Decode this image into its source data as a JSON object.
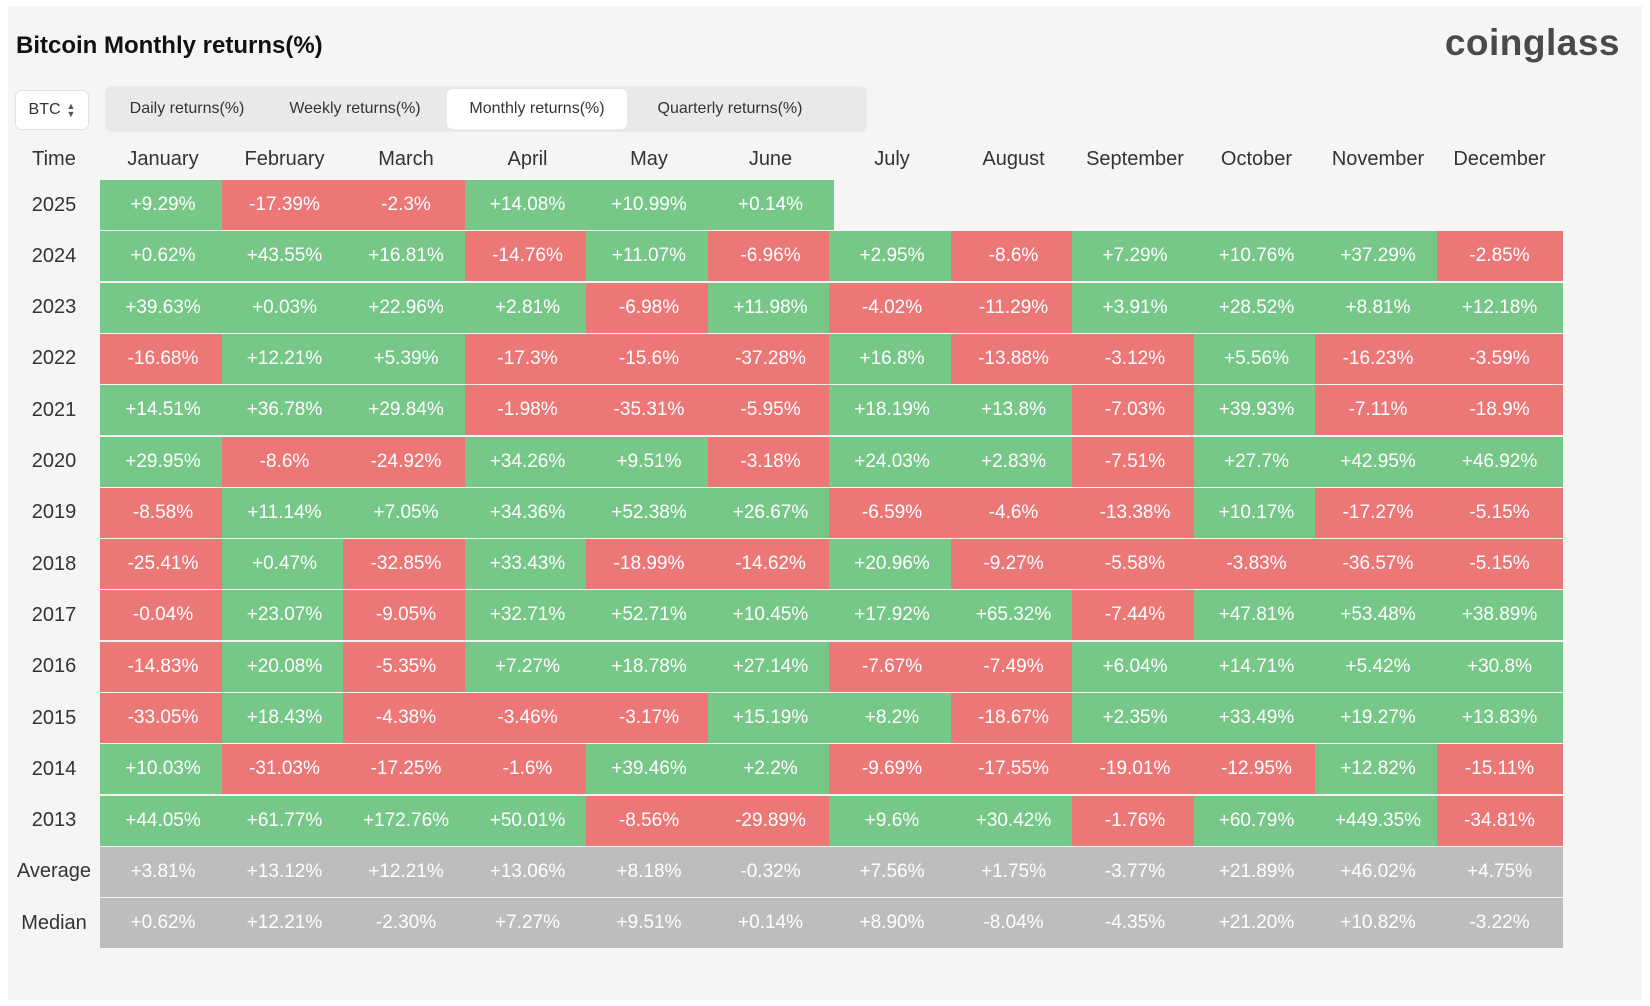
{
  "header": {
    "title": "Bitcoin Monthly returns(%)",
    "logo_text": "coinglass"
  },
  "controls": {
    "asset_selector": {
      "value": "BTC",
      "icon": "updown-chevron-icon"
    },
    "tabs": [
      {
        "label": "Daily returns(%)",
        "active": false
      },
      {
        "label": "Weekly returns(%)",
        "active": false
      },
      {
        "label": "Monthly returns(%)",
        "active": true
      },
      {
        "label": "Quarterly returns(%)",
        "active": false
      }
    ]
  },
  "colors": {
    "positive": "#77c888",
    "negative": "#eb7777",
    "summary": "#bdbdbd"
  },
  "chart_data": {
    "type": "heatmap",
    "title": "Bitcoin Monthly returns(%)",
    "row_header": "Time",
    "columns": [
      "January",
      "February",
      "March",
      "April",
      "May",
      "June",
      "July",
      "August",
      "September",
      "October",
      "November",
      "December"
    ],
    "rows": [
      {
        "label": "2025",
        "values": [
          "+9.29%",
          "-17.39%",
          "-2.3%",
          "+14.08%",
          "+10.99%",
          "+0.14%",
          null,
          null,
          null,
          null,
          null,
          null
        ]
      },
      {
        "label": "2024",
        "values": [
          "+0.62%",
          "+43.55%",
          "+16.81%",
          "-14.76%",
          "+11.07%",
          "-6.96%",
          "+2.95%",
          "-8.6%",
          "+7.29%",
          "+10.76%",
          "+37.29%",
          "-2.85%"
        ]
      },
      {
        "label": "2023",
        "values": [
          "+39.63%",
          "+0.03%",
          "+22.96%",
          "+2.81%",
          "-6.98%",
          "+11.98%",
          "-4.02%",
          "-11.29%",
          "+3.91%",
          "+28.52%",
          "+8.81%",
          "+12.18%"
        ]
      },
      {
        "label": "2022",
        "values": [
          "-16.68%",
          "+12.21%",
          "+5.39%",
          "-17.3%",
          "-15.6%",
          "-37.28%",
          "+16.8%",
          "-13.88%",
          "-3.12%",
          "+5.56%",
          "-16.23%",
          "-3.59%"
        ]
      },
      {
        "label": "2021",
        "values": [
          "+14.51%",
          "+36.78%",
          "+29.84%",
          "-1.98%",
          "-35.31%",
          "-5.95%",
          "+18.19%",
          "+13.8%",
          "-7.03%",
          "+39.93%",
          "-7.11%",
          "-18.9%"
        ]
      },
      {
        "label": "2020",
        "values": [
          "+29.95%",
          "-8.6%",
          "-24.92%",
          "+34.26%",
          "+9.51%",
          "-3.18%",
          "+24.03%",
          "+2.83%",
          "-7.51%",
          "+27.7%",
          "+42.95%",
          "+46.92%"
        ]
      },
      {
        "label": "2019",
        "values": [
          "-8.58%",
          "+11.14%",
          "+7.05%",
          "+34.36%",
          "+52.38%",
          "+26.67%",
          "-6.59%",
          "-4.6%",
          "-13.38%",
          "+10.17%",
          "-17.27%",
          "-5.15%"
        ]
      },
      {
        "label": "2018",
        "values": [
          "-25.41%",
          "+0.47%",
          "-32.85%",
          "+33.43%",
          "-18.99%",
          "-14.62%",
          "+20.96%",
          "-9.27%",
          "-5.58%",
          "-3.83%",
          "-36.57%",
          "-5.15%"
        ]
      },
      {
        "label": "2017",
        "values": [
          "-0.04%",
          "+23.07%",
          "-9.05%",
          "+32.71%",
          "+52.71%",
          "+10.45%",
          "+17.92%",
          "+65.32%",
          "-7.44%",
          "+47.81%",
          "+53.48%",
          "+38.89%"
        ]
      },
      {
        "label": "2016",
        "values": [
          "-14.83%",
          "+20.08%",
          "-5.35%",
          "+7.27%",
          "+18.78%",
          "+27.14%",
          "-7.67%",
          "-7.49%",
          "+6.04%",
          "+14.71%",
          "+5.42%",
          "+30.8%"
        ]
      },
      {
        "label": "2015",
        "values": [
          "-33.05%",
          "+18.43%",
          "-4.38%",
          "-3.46%",
          "-3.17%",
          "+15.19%",
          "+8.2%",
          "-18.67%",
          "+2.35%",
          "+33.49%",
          "+19.27%",
          "+13.83%"
        ]
      },
      {
        "label": "2014",
        "values": [
          "+10.03%",
          "-31.03%",
          "-17.25%",
          "-1.6%",
          "+39.46%",
          "+2.2%",
          "-9.69%",
          "-17.55%",
          "-19.01%",
          "-12.95%",
          "+12.82%",
          "-15.11%"
        ]
      },
      {
        "label": "2013",
        "values": [
          "+44.05%",
          "+61.77%",
          "+172.76%",
          "+50.01%",
          "-8.56%",
          "-29.89%",
          "+9.6%",
          "+30.42%",
          "-1.76%",
          "+60.79%",
          "+449.35%",
          "-34.81%"
        ]
      },
      {
        "label": "Average",
        "summary": true,
        "values": [
          "+3.81%",
          "+13.12%",
          "+12.21%",
          "+13.06%",
          "+8.18%",
          "-0.32%",
          "+7.56%",
          "+1.75%",
          "-3.77%",
          "+21.89%",
          "+46.02%",
          "+4.75%"
        ]
      },
      {
        "label": "Median",
        "summary": true,
        "values": [
          "+0.62%",
          "+12.21%",
          "-2.30%",
          "+7.27%",
          "+9.51%",
          "+0.14%",
          "+8.90%",
          "-8.04%",
          "-4.35%",
          "+21.20%",
          "+10.82%",
          "-3.22%"
        ]
      }
    ]
  }
}
